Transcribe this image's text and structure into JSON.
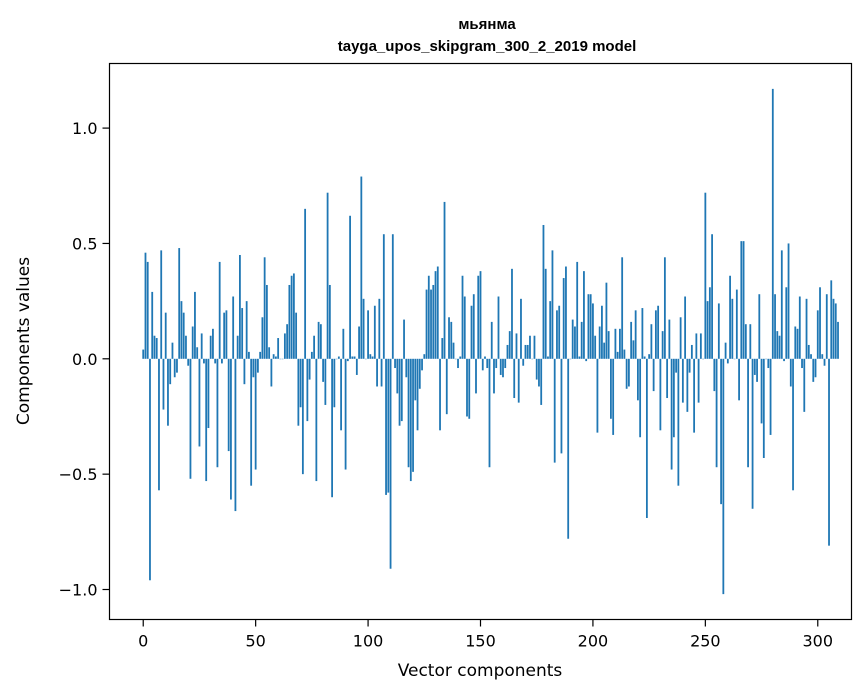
{
  "chart_data": {
    "type": "bar",
    "title": "мьянма",
    "subtitle": "tayga_upos_skipgram_300_2_2019 model",
    "xlabel": "Vector components",
    "ylabel": "Components values",
    "xlim": [
      -15,
      315
    ],
    "ylim": [
      -1.13,
      1.28
    ],
    "xticks": [
      0,
      50,
      100,
      150,
      200,
      250,
      300
    ],
    "yticks": [
      -1.0,
      -0.5,
      0.0,
      0.5,
      1.0
    ],
    "xtick_labels": [
      "0",
      "50",
      "100",
      "150",
      "200",
      "250",
      "300"
    ],
    "ytick_labels": [
      "−1.0",
      "−0.5",
      "0.0",
      "0.5",
      "1.0"
    ],
    "grid": false,
    "bar_color": "#1f77b4",
    "x_start": 0,
    "values": [
      0.04,
      0.46,
      0.42,
      -0.96,
      0.29,
      0.1,
      0.09,
      -0.57,
      0.47,
      -0.22,
      0.2,
      -0.29,
      -0.11,
      0.07,
      -0.08,
      -0.06,
      0.48,
      0.25,
      0.2,
      0.1,
      -0.03,
      -0.52,
      0.14,
      0.29,
      0.05,
      -0.38,
      0.11,
      -0.02,
      -0.53,
      -0.3,
      0.1,
      0.13,
      -0.02,
      -0.47,
      0.42,
      -0.02,
      0.2,
      0.21,
      -0.4,
      -0.61,
      0.27,
      -0.66,
      0.1,
      0.45,
      0.22,
      -0.11,
      0.25,
      0.03,
      -0.55,
      -0.08,
      -0.48,
      -0.06,
      0.03,
      0.18,
      0.44,
      0.32,
      0.05,
      -0.12,
      0.02,
      0.01,
      0.09,
      0.0,
      0.0,
      0.11,
      0.15,
      0.32,
      0.36,
      0.37,
      0.2,
      -0.29,
      -0.21,
      -0.5,
      0.65,
      -0.27,
      -0.09,
      0.03,
      0.1,
      -0.53,
      0.16,
      0.15,
      -0.1,
      -0.2,
      0.72,
      0.32,
      -0.6,
      -0.21,
      0.0,
      0.01,
      -0.31,
      0.13,
      -0.48,
      -0.01,
      0.62,
      0.01,
      0.01,
      -0.07,
      0.14,
      0.79,
      0.26,
      0.0,
      0.21,
      0.02,
      0.01,
      0.23,
      -0.12,
      0.26,
      -0.12,
      0.54,
      -0.59,
      -0.58,
      -0.91,
      0.54,
      -0.04,
      -0.15,
      -0.29,
      -0.27,
      0.17,
      -0.08,
      -0.47,
      -0.53,
      -0.49,
      -0.18,
      -0.31,
      -0.13,
      -0.05,
      0.02,
      0.3,
      0.36,
      0.3,
      0.32,
      0.38,
      0.4,
      -0.31,
      0.09,
      0.68,
      -0.24,
      0.18,
      0.16,
      0.07,
      0.0,
      -0.04,
      0.01,
      0.36,
      0.27,
      -0.25,
      -0.26,
      0.23,
      0.28,
      -0.15,
      0.36,
      0.38,
      -0.05,
      0.01,
      -0.04,
      -0.47,
      0.16,
      -0.15,
      -0.04,
      0.27,
      -0.07,
      -0.08,
      -0.04,
      0.06,
      0.12,
      0.39,
      -0.17,
      0.11,
      -0.19,
      0.26,
      -0.03,
      0.06,
      0.06,
      0.1,
      0.0,
      0.1,
      -0.09,
      -0.12,
      -0.2,
      0.58,
      0.39,
      0.01,
      0.25,
      0.47,
      -0.45,
      0.21,
      0.23,
      -0.41,
      0.35,
      0.4,
      -0.78,
      0.0,
      0.17,
      0.14,
      0.42,
      0.01,
      0.16,
      0.38,
      -0.01,
      0.28,
      0.28,
      0.24,
      0.1,
      -0.32,
      0.14,
      0.23,
      0.07,
      0.33,
      0.12,
      -0.26,
      -0.33,
      0.13,
      0.03,
      0.13,
      0.44,
      0.04,
      -0.13,
      -0.12,
      0.16,
      0.08,
      0.21,
      -0.18,
      -0.34,
      0.22,
      0.01,
      -0.69,
      0.02,
      0.15,
      -0.14,
      0.21,
      0.23,
      -0.31,
      0.12,
      0.44,
      -0.17,
      0.17,
      -0.48,
      -0.34,
      -0.06,
      -0.55,
      0.18,
      -0.19,
      0.27,
      -0.23,
      -0.06,
      0.06,
      -0.32,
      0.11,
      -0.19,
      0.11,
      0.0,
      0.72,
      0.25,
      0.31,
      0.54,
      -0.14,
      -0.47,
      0.24,
      -0.63,
      -1.02,
      0.07,
      -0.02,
      0.36,
      0.26,
      0.0,
      0.3,
      -0.18,
      0.51,
      0.51,
      0.15,
      -0.47,
      0.15,
      -0.65,
      -0.07,
      -0.1,
      0.28,
      -0.28,
      -0.43,
      0.0,
      -0.04,
      -0.33,
      1.17,
      0.28,
      0.12,
      0.1,
      0.47,
      -0.01,
      0.31,
      0.5,
      -0.12,
      -0.57,
      0.14,
      0.13,
      0.27,
      -0.04,
      -0.23,
      0.26,
      0.06,
      0.02,
      -0.1,
      -0.08,
      0.21,
      0.31,
      0.02,
      -0.03,
      0.28,
      -0.81,
      0.34,
      0.26,
      0.24,
      0.16
    ]
  }
}
